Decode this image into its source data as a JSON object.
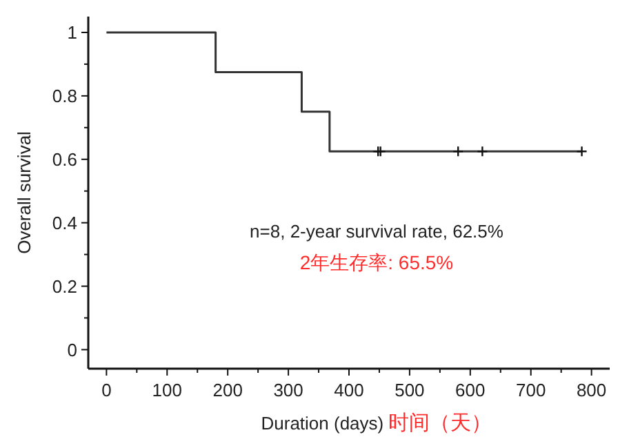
{
  "chart_data": {
    "type": "step",
    "xlabel": "Duration (days) 时间（天）",
    "ylabel": "Overall survival",
    "xlim": [
      -30,
      830
    ],
    "ylim": [
      -0.06,
      1.05
    ],
    "xticks": [
      0,
      100,
      200,
      300,
      400,
      500,
      600,
      700,
      800,
      {
        "value": 50,
        "label": null
      },
      {
        "value": 150,
        "label": null
      },
      {
        "value": 250,
        "label": null
      },
      {
        "value": 350,
        "label": null
      },
      {
        "value": 450,
        "label": null
      },
      {
        "value": 550,
        "label": null
      },
      {
        "value": 650,
        "label": null
      },
      {
        "value": 750,
        "label": null
      }
    ],
    "yticks": [
      0,
      0.2,
      0.4,
      0.6,
      0.8,
      1,
      {
        "value": 0.1,
        "label": null
      },
      {
        "value": 0.3,
        "label": null
      },
      {
        "value": 0.5,
        "label": null
      },
      {
        "value": 0.7,
        "label": null
      },
      {
        "value": 0.9,
        "label": null
      }
    ],
    "series": [
      {
        "color": "#333333",
        "x": [
          0,
          180,
          322,
          368,
          784
        ],
        "values": [
          1,
          0.875,
          0.75,
          0.625,
          0.625
        ]
      },
      {
        "type": "scatter",
        "marker": "cross",
        "color": "#111111",
        "x": [
          448,
          452,
          580,
          620,
          784
        ],
        "values": [
          0.625,
          0.625,
          0.625,
          0.625,
          0.625
        ]
      }
    ],
    "annotations": [
      "n=8, 2-year survival rate, 62.5%",
      "2年生存率: 65.5%"
    ],
    "grid": false
  }
}
